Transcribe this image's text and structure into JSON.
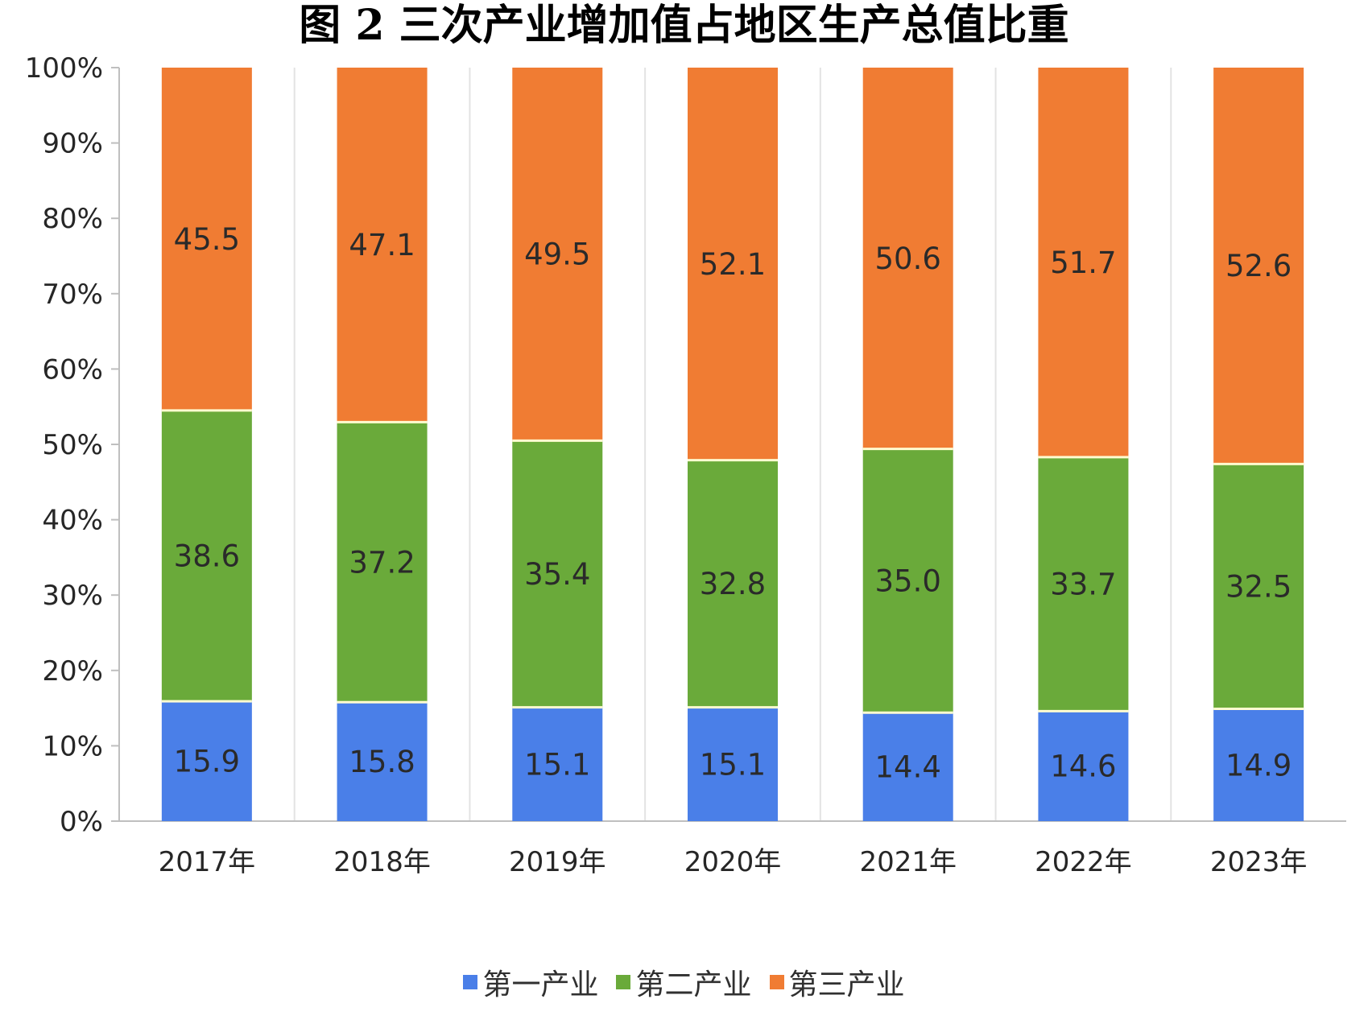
{
  "chart_data": {
    "type": "bar",
    "stacked": true,
    "title": "图 2    三次产业增加值占地区生产总值比重",
    "categories": [
      "2017年",
      "2018年",
      "2019年",
      "2020年",
      "2021年",
      "2022年",
      "2023年"
    ],
    "series": [
      {
        "name": "第一产业",
        "color": "#4a7fe8",
        "values": [
          15.9,
          15.8,
          15.1,
          15.1,
          14.4,
          14.6,
          14.9
        ]
      },
      {
        "name": "第二产业",
        "color": "#6aaa3a",
        "values": [
          38.6,
          37.2,
          35.4,
          32.8,
          35.0,
          33.7,
          32.5
        ]
      },
      {
        "name": "第三产业",
        "color": "#f07c33",
        "values": [
          45.5,
          47.1,
          49.5,
          52.1,
          50.6,
          51.7,
          52.6
        ]
      }
    ],
    "yticks": [
      "0%",
      "10%",
      "20%",
      "30%",
      "40%",
      "50%",
      "60%",
      "70%",
      "80%",
      "90%",
      "100%"
    ],
    "ylim": [
      0,
      100
    ],
    "legend_position": "bottom",
    "grid": "vertical"
  }
}
